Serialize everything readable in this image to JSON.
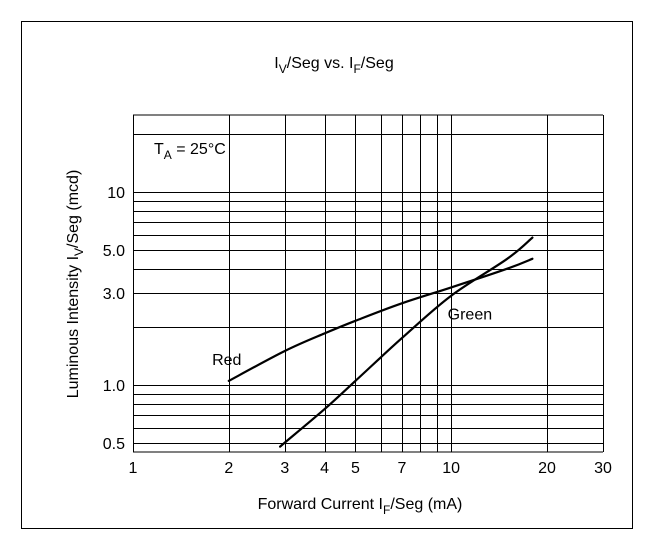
{
  "chart_data": {
    "type": "line",
    "title": {
      "main_a": "I",
      "sub_a": "V",
      "main_b": "/Seg vs. I",
      "sub_b": "F",
      "main_c": "/Seg"
    },
    "xlabel": {
      "main_a": "Forward Current I",
      "sub_a": "F",
      "main_b": "/Seg (mA)"
    },
    "ylabel": {
      "main_a": "Luminous Intensity I",
      "sub_a": "V",
      "main_b": "/Seg (mcd)"
    },
    "annotation": {
      "main_a": "T",
      "sub_a": "A",
      "main_b": " = 25°C"
    },
    "x_scale": "log",
    "y_scale": "log",
    "xlim": [
      1,
      30
    ],
    "ylim": [
      0.45,
      25
    ],
    "x_ticks": [
      1,
      2,
      3,
      4,
      5,
      7,
      10,
      20,
      30
    ],
    "x_tick_labels": [
      "1",
      "2",
      "3",
      "4",
      "5",
      "7",
      "10",
      "20",
      "30"
    ],
    "y_ticks": [
      0.5,
      1.0,
      3.0,
      5.0,
      10
    ],
    "y_tick_labels": [
      "0.5",
      "1.0",
      "3.0",
      "5.0",
      "10"
    ],
    "x_grid": [
      1,
      2,
      3,
      4,
      5,
      6,
      7,
      8,
      9,
      10,
      20,
      30
    ],
    "y_grid": [
      0.5,
      0.6,
      0.7,
      0.8,
      0.9,
      1.0,
      2.0,
      3.0,
      4.0,
      5.0,
      6.0,
      7.0,
      8.0,
      9.0,
      10,
      20
    ],
    "grid": true,
    "series": [
      {
        "name": "Red",
        "x": [
          2,
          3,
          4,
          5,
          7,
          10,
          15,
          18
        ],
        "y": [
          1.05,
          1.5,
          1.85,
          2.15,
          2.65,
          3.2,
          4.0,
          4.5
        ]
      },
      {
        "name": "Green",
        "x": [
          2.9,
          4,
          5,
          7,
          10,
          15,
          18
        ],
        "y": [
          0.48,
          0.75,
          1.05,
          1.75,
          2.9,
          4.5,
          5.8
        ]
      }
    ]
  }
}
